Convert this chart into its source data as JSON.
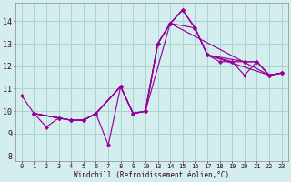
{
  "xlabel": "Windchill (Refroidissement éolien,°C)",
  "bg_color": "#d4eeee",
  "grid_color": "#a8d4d4",
  "line_color": "#990099",
  "x_labels": [
    "0",
    "1",
    "2",
    "3",
    "4",
    "5",
    "6",
    "7",
    "8",
    "9",
    "10",
    "13",
    "14",
    "15",
    "16",
    "17",
    "18",
    "19",
    "20",
    "21",
    "22",
    "23"
  ],
  "x_vals": [
    0,
    1,
    2,
    3,
    4,
    5,
    6,
    7,
    8,
    9,
    10,
    13,
    14,
    15,
    16,
    17,
    18,
    19,
    20,
    21,
    22,
    23
  ],
  "ylim": [
    7.8,
    14.8
  ],
  "yticks": [
    8,
    9,
    10,
    11,
    12,
    13,
    14
  ],
  "lines": [
    {
      "x": [
        0,
        1,
        2,
        3,
        4,
        5,
        6,
        7,
        8,
        9,
        10,
        13,
        14,
        15,
        16,
        17,
        18,
        19,
        20,
        21,
        22,
        23
      ],
      "y": [
        10.7,
        9.9,
        9.3,
        9.7,
        9.6,
        9.6,
        9.9,
        8.5,
        11.1,
        9.9,
        10.0,
        13.0,
        13.9,
        14.5,
        13.7,
        12.5,
        12.2,
        12.2,
        11.6,
        12.2,
        11.6,
        11.7
      ]
    },
    {
      "x": [
        1,
        3,
        4,
        5,
        6,
        8,
        9,
        10,
        13,
        14,
        15,
        16,
        17,
        22,
        23
      ],
      "y": [
        9.9,
        9.7,
        9.6,
        9.6,
        9.9,
        11.1,
        9.9,
        10.0,
        13.0,
        13.9,
        14.5,
        13.7,
        12.5,
        11.6,
        11.7
      ]
    },
    {
      "x": [
        1,
        3,
        4,
        5,
        6,
        8,
        9,
        10,
        13,
        14,
        15,
        16,
        17,
        19,
        20,
        21,
        22,
        23
      ],
      "y": [
        9.9,
        9.7,
        9.6,
        9.6,
        9.9,
        11.1,
        9.9,
        10.0,
        13.0,
        13.9,
        14.5,
        13.7,
        12.5,
        12.2,
        12.2,
        12.2,
        11.6,
        11.7
      ]
    },
    {
      "x": [
        1,
        3,
        4,
        5,
        6,
        8,
        9,
        10,
        13,
        14,
        16,
        17,
        20,
        21,
        22,
        23
      ],
      "y": [
        9.9,
        9.7,
        9.6,
        9.6,
        9.9,
        11.1,
        9.9,
        10.0,
        13.0,
        13.9,
        13.7,
        12.5,
        12.2,
        12.2,
        11.6,
        11.7
      ]
    },
    {
      "x": [
        1,
        3,
        4,
        5,
        6,
        8,
        9,
        10,
        14,
        22,
        23
      ],
      "y": [
        9.9,
        9.7,
        9.6,
        9.6,
        9.9,
        11.1,
        9.9,
        10.0,
        13.9,
        11.6,
        11.7
      ]
    }
  ]
}
